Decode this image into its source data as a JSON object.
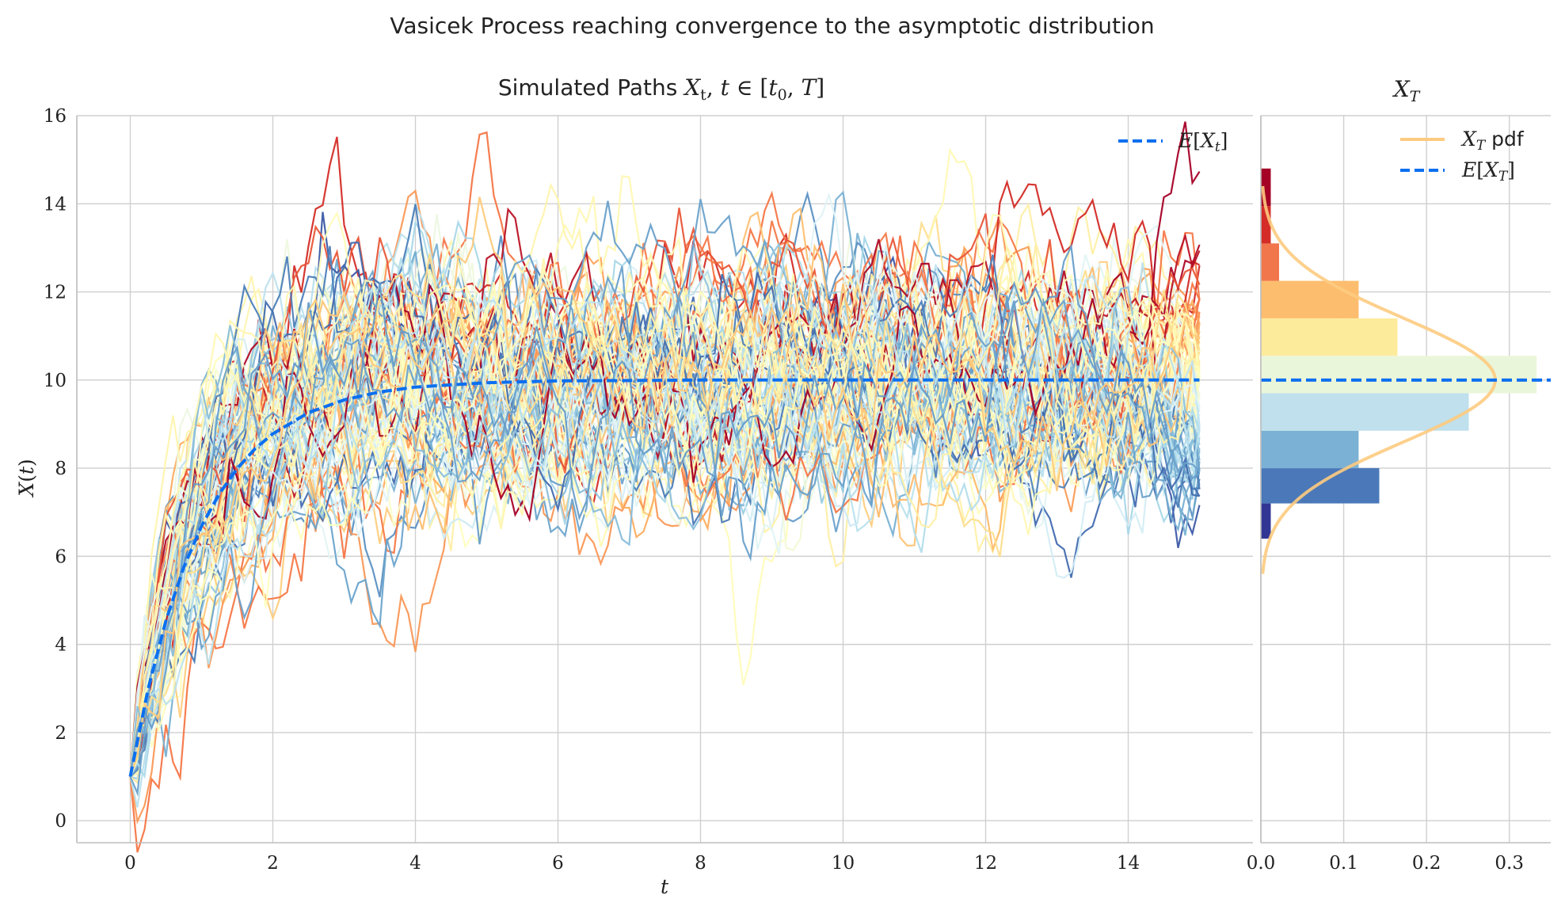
{
  "figure": {
    "suptitle": "Vasicek Process reaching convergence to the asymptotic distribution"
  },
  "chart_data": [
    {
      "type": "line",
      "title": "Simulated Paths X_t, t ∈ [t_0, T]",
      "xlabel": "t",
      "ylabel": "X(t)",
      "xlim": [
        -0.75,
        15.75
      ],
      "ylim": [
        -0.5,
        16.0
      ],
      "xticks": [
        0,
        2,
        4,
        6,
        8,
        10,
        12,
        14
      ],
      "yticks": [
        0,
        2,
        4,
        6,
        8,
        10,
        12,
        14,
        16
      ],
      "grid": true,
      "legend": {
        "position": "top-right",
        "entries": [
          "E[X_t]"
        ]
      },
      "paths": {
        "count": 100,
        "t_start": 0,
        "t_end": 15,
        "x0": 1,
        "long_run_mean": 10,
        "mean_reversion_speed": 1,
        "volatility": 2,
        "colormap": "RdYlBu"
      },
      "series": [
        {
          "name": "E[X_t]",
          "style": "dashed",
          "color": "#0b6ff0",
          "x": [
            0,
            0.25,
            0.5,
            0.75,
            1,
            1.25,
            1.5,
            1.75,
            2,
            2.5,
            3,
            3.5,
            4,
            5,
            6,
            7,
            8,
            10,
            12,
            15
          ],
          "y": [
            1.0,
            2.99,
            4.54,
            5.75,
            6.69,
            7.42,
            7.99,
            8.44,
            8.78,
            9.26,
            9.55,
            9.73,
            9.84,
            9.94,
            9.98,
            9.99,
            10.0,
            10.0,
            10.0,
            10.0
          ]
        }
      ]
    },
    {
      "type": "bar",
      "orientation": "horizontal",
      "title": "X_T",
      "xlim": [
        0,
        0.35
      ],
      "xticks": [
        0.0,
        0.1,
        0.2,
        0.3
      ],
      "xtick_labels": [
        "0.0",
        "0.1",
        "0.2",
        "0.3"
      ],
      "ylim": [
        -0.5,
        16.0
      ],
      "grid": true,
      "legend": {
        "position": "top-right",
        "entries": [
          "X_T pdf",
          "E[X_T]"
        ]
      },
      "bins": [
        {
          "low": 6.4,
          "high": 7.2,
          "density": 0.012,
          "color": "#313695"
        },
        {
          "low": 7.2,
          "high": 8.0,
          "density": 0.143,
          "color": "#4a78b9"
        },
        {
          "low": 8.0,
          "high": 8.85,
          "density": 0.118,
          "color": "#7bb1d4"
        },
        {
          "low": 8.85,
          "high": 9.7,
          "density": 0.251,
          "color": "#bfe0ec"
        },
        {
          "low": 9.7,
          "high": 10.55,
          "density": 0.333,
          "color": "#eaf6d9"
        },
        {
          "low": 10.55,
          "high": 11.4,
          "density": 0.165,
          "color": "#fdeb9c"
        },
        {
          "low": 11.4,
          "high": 12.25,
          "density": 0.118,
          "color": "#fdbd6e"
        },
        {
          "low": 12.25,
          "high": 13.1,
          "density": 0.022,
          "color": "#f2764c"
        },
        {
          "low": 13.1,
          "high": 13.95,
          "density": 0.012,
          "color": "#d42d28"
        },
        {
          "low": 13.95,
          "high": 14.8,
          "density": 0.012,
          "color": "#a50026"
        }
      ],
      "series": [
        {
          "name": "X_T pdf",
          "distribution": "normal",
          "mean": 10.0,
          "sd": 1.41,
          "range": [
            5.6,
            14.4
          ],
          "color": "#fdcb80"
        },
        {
          "name": "E[X_T]",
          "style": "dashed",
          "color": "#0b6ff0",
          "y": 10.0
        }
      ]
    }
  ]
}
